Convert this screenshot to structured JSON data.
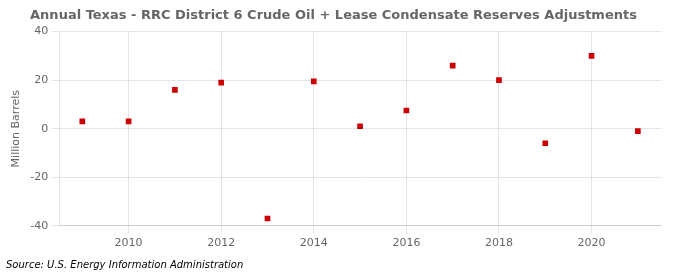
{
  "chart_data": {
    "type": "scatter",
    "title": "Annual Texas - RRC District 6 Crude Oil + Lease Condensate Reserves Adjustments",
    "ylabel": "Million Barrels",
    "annotation": "Source: U.S. Energy Information Administration",
    "x": [
      2009,
      2010,
      2011,
      2012,
      2013,
      2014,
      2015,
      2016,
      2017,
      2018,
      2019,
      2020,
      2021
    ],
    "values": [
      3,
      3,
      16,
      19,
      -37,
      19.5,
      1,
      7.5,
      26,
      20,
      -6,
      30,
      -1
    ],
    "color": "#cc0000",
    "marker": "square",
    "xlim": [
      2008.5,
      2021.5
    ],
    "xticks": [
      2010,
      2012,
      2014,
      2016,
      2018,
      2020
    ],
    "ylim": [
      -40,
      40
    ],
    "yticks": [
      -40,
      -20,
      0,
      20,
      40
    ],
    "grid": true
  }
}
